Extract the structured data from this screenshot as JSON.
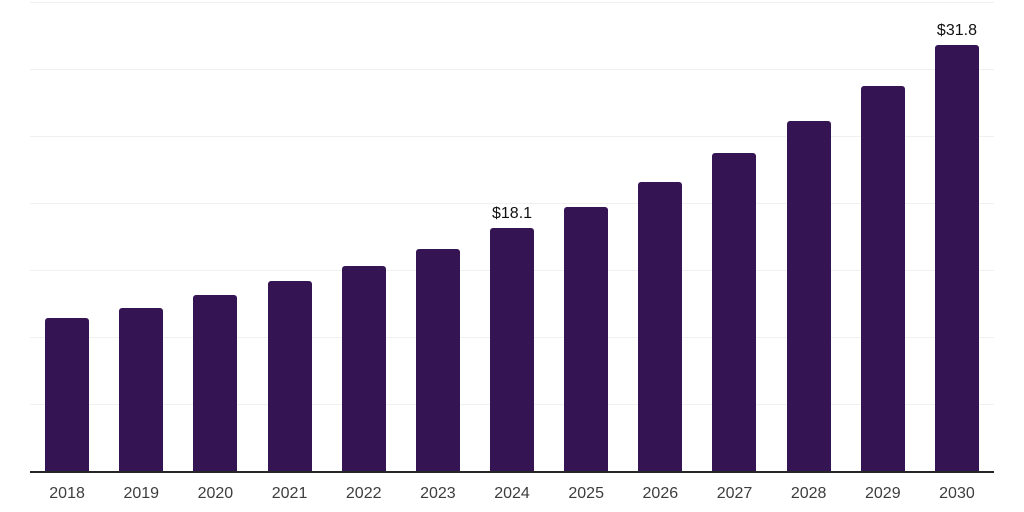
{
  "chart_data": {
    "type": "bar",
    "title": "",
    "xlabel": "",
    "ylabel": "",
    "categories": [
      "2018",
      "2019",
      "2020",
      "2021",
      "2022",
      "2023",
      "2024",
      "2025",
      "2026",
      "2027",
      "2028",
      "2029",
      "2030"
    ],
    "values": [
      11.4,
      12.2,
      13.1,
      14.2,
      15.3,
      16.6,
      18.1,
      19.7,
      21.6,
      23.7,
      26.1,
      28.7,
      31.8
    ],
    "point_labels": [
      "",
      "",
      "",
      "",
      "",
      "",
      "$18.1",
      "",
      "",
      "",
      "",
      "",
      "$31.8"
    ],
    "ylim": [
      0,
      35
    ],
    "grid_step": 5,
    "grid": "horizontal-only",
    "legend": "none",
    "colors": {
      "bar": "#341452",
      "grid": "#f0f0f0",
      "axis": "#262626",
      "tick_label": "#3d3d3d",
      "value_label": "#111111",
      "background": "#ffffff"
    }
  }
}
